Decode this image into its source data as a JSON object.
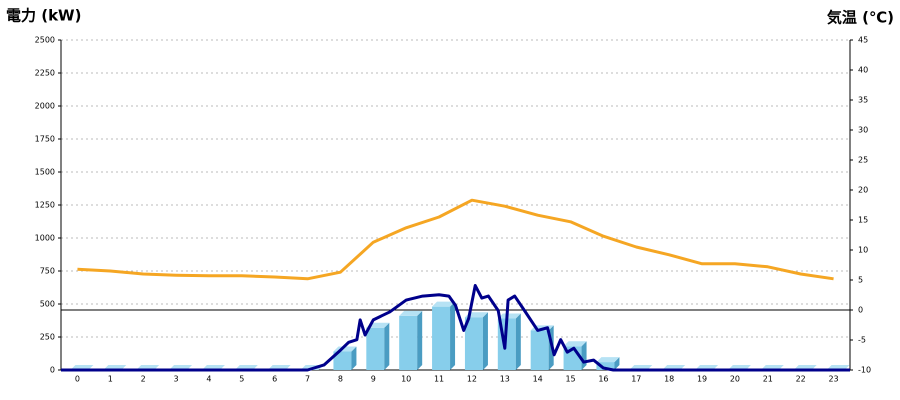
{
  "chart_data": {
    "type": "bar",
    "y_title": "電力 (kW)",
    "y2_title": "気温 (℃)",
    "y_title_color": "#1f6fc0",
    "y2_title_color": "#f08a1c",
    "categories": [
      0,
      1,
      2,
      3,
      4,
      5,
      6,
      7,
      8,
      9,
      10,
      11,
      12,
      13,
      14,
      15,
      16,
      17,
      18,
      19,
      20,
      21,
      22,
      23
    ],
    "xlim": [
      -0.5,
      23.5
    ],
    "ylim": [
      0,
      2500
    ],
    "yticks": [
      0,
      250,
      500,
      750,
      1000,
      1250,
      1500,
      1750,
      2000,
      2250,
      2500
    ],
    "y2lim": [
      -10,
      45
    ],
    "y2ticks": [
      -10,
      -5,
      0,
      5,
      10,
      15,
      20,
      25,
      30,
      35,
      40,
      45
    ],
    "grid": true,
    "series": [
      {
        "type": "bar",
        "color": "#87ceeb",
        "values": [
          0,
          0,
          0,
          0,
          0,
          0,
          0,
          0,
          140,
          320,
          410,
          480,
          400,
          390,
          300,
          180,
          60,
          0,
          0,
          0,
          0,
          0,
          0,
          0
        ]
      },
      {
        "type": "line",
        "axis": "y2",
        "color": "#f5a623",
        "values": [
          6.8,
          6.5,
          6,
          5.8,
          5.7,
          5.7,
          5.5,
          5.2,
          6.3,
          11.3,
          13.7,
          15.5,
          18.3,
          17.3,
          15.8,
          14.7,
          12.3,
          10.5,
          9.2,
          7.7,
          7.7,
          7.2,
          6,
          5.2
        ]
      },
      {
        "type": "line",
        "color": "#00008b",
        "x": [
          -0.5,
          7,
          7.5,
          8,
          8.25,
          8.5,
          8.6,
          8.75,
          9,
          9.5,
          10,
          10.5,
          11,
          11.3,
          11.5,
          11.75,
          11.9,
          12.1,
          12.3,
          12.5,
          12.8,
          13,
          13.1,
          13.3,
          13.6,
          14,
          14.3,
          14.5,
          14.7,
          14.9,
          15.1,
          15.4,
          15.7,
          16,
          16.3,
          23.5
        ],
        "values": [
          0,
          0,
          38,
          150,
          210,
          230,
          380,
          265,
          380,
          440,
          530,
          560,
          570,
          560,
          490,
          300,
          390,
          640,
          545,
          560,
          450,
          165,
          530,
          560,
          450,
          300,
          320,
          115,
          230,
          135,
          165,
          60,
          75,
          15,
          0,
          0
        ]
      }
    ]
  }
}
